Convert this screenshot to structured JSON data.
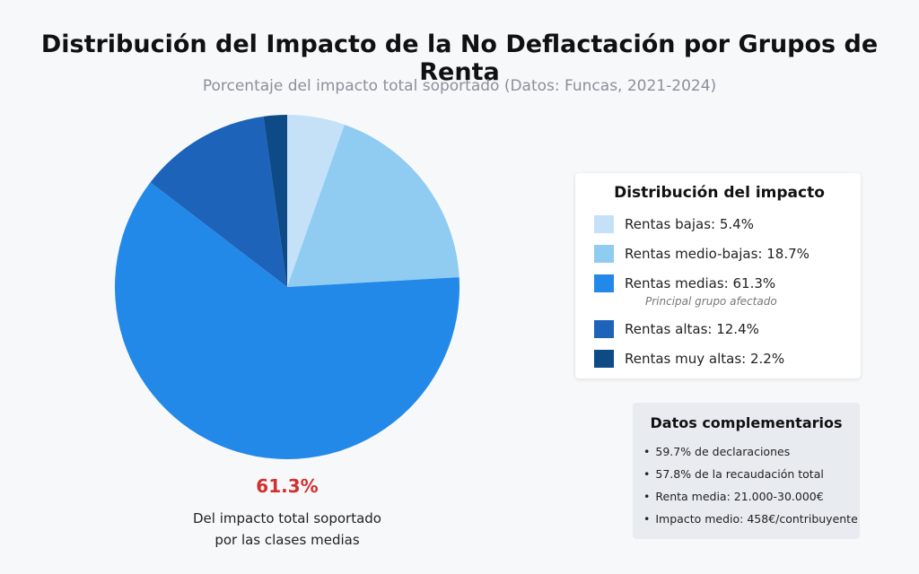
{
  "title": "Distribución del Impacto de la No Deflactación por Grupos de Renta",
  "subtitle": "Porcentaje del impacto total soportado (Datos: Funcas, 2021-2024)",
  "chart_data": {
    "type": "pie",
    "start_angle_deg": 0,
    "direction": "clockwise",
    "series": [
      {
        "name": "Rentas bajas",
        "value": 5.4,
        "color": "#c5e1f8"
      },
      {
        "name": "Rentas medio-bajas",
        "value": 18.7,
        "color": "#90cbf1"
      },
      {
        "name": "Rentas medias",
        "value": 61.3,
        "color": "#2289e8"
      },
      {
        "name": "Rentas altas",
        "value": 12.4,
        "color": "#1d63ba"
      },
      {
        "name": "Rentas muy altas",
        "value": 2.2,
        "color": "#0d4a86"
      }
    ]
  },
  "legend": {
    "title": "Distribución del impacto",
    "items": [
      {
        "label": "Rentas bajas: 5.4%",
        "color": "#c5e1f8"
      },
      {
        "label": "Rentas medio-bajas: 18.7%",
        "color": "#90cbf1"
      },
      {
        "label": "Rentas medias: 61.3%",
        "color": "#2289e8",
        "note": "Principal grupo afectado"
      },
      {
        "label": "Rentas altas: 12.4%",
        "color": "#1d63ba"
      },
      {
        "label": "Rentas muy altas: 2.2%",
        "color": "#0d4a86"
      }
    ]
  },
  "callout": {
    "value": "61.3%",
    "line1": "Del impacto total soportado",
    "line2": "por las clases medias"
  },
  "complementary": {
    "title": "Datos complementarios",
    "bullet": "•",
    "items": [
      "59.7% de declaraciones",
      "57.8% de la recaudación total",
      "Renta media: 21.000-30.000€",
      "Impacto medio: 458€/contribuyente"
    ]
  }
}
